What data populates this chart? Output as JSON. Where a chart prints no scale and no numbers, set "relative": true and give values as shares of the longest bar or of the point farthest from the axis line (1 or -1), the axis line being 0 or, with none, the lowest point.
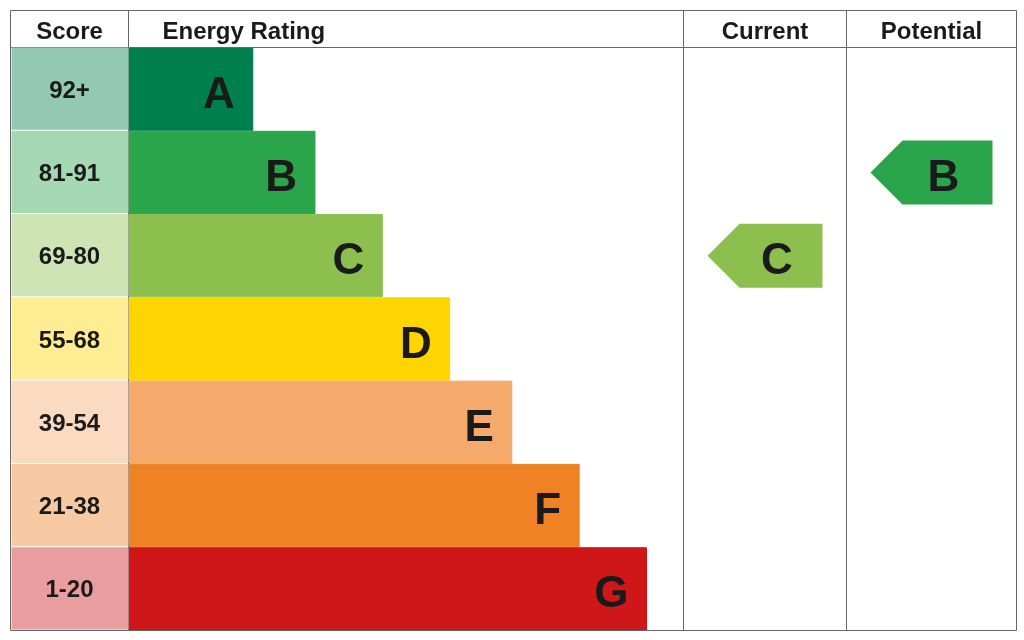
{
  "chart_data": {
    "type": "bar",
    "orientation": "horizontal",
    "relative": true,
    "categories": [
      "A",
      "B",
      "C",
      "D",
      "E",
      "F",
      "G"
    ],
    "values": [
      0.24,
      0.36,
      0.49,
      0.62,
      0.74,
      0.87,
      1.0
    ],
    "colors": [
      "#007f4e",
      "#2aa54b",
      "#8cbf4e",
      "#ffd500",
      "#f5a96b",
      "#ee8224",
      "#cf1719"
    ],
    "annotations": [
      "Score",
      "Energy Rating",
      "Current",
      "Potential",
      "92+",
      "81-91",
      "69-80",
      "55-68",
      "39-54",
      "21-38",
      "1-20",
      "C",
      "B"
    ]
  }
}
